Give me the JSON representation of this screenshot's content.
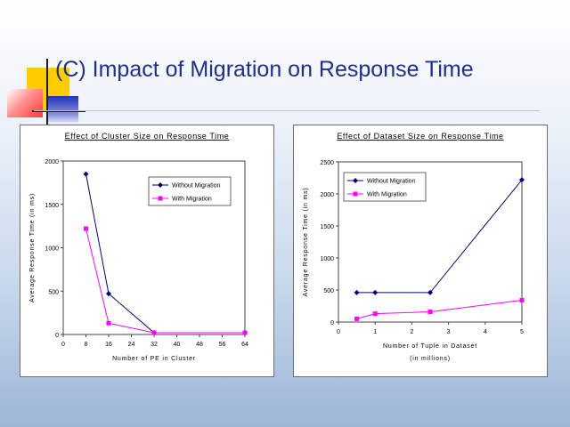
{
  "slide": {
    "title": "(C) Impact of Migration on Response Time"
  },
  "colors": {
    "title": "#1f2f8f",
    "square_yellow": "#ffcc00",
    "square_red": "#ff3b3b",
    "square_blue": "#2233bb",
    "series_without": "#000080",
    "series_with": "#ff00ff"
  },
  "chart_data": [
    {
      "type": "line",
      "title": "Effect of Cluster Size on Response Time",
      "xlabel": "Number of PE in Cluster",
      "xlabel2": "",
      "ylabel": "Average Response Time (in ms)",
      "xlim": [
        0,
        64
      ],
      "ylim": [
        0,
        2000
      ],
      "xticks": [
        0,
        8,
        16,
        24,
        32,
        40,
        48,
        56,
        64
      ],
      "yticks": [
        0,
        500,
        1000,
        1500,
        2000
      ],
      "grid": false,
      "legend": "top-right",
      "series": [
        {
          "name": "Without Migration",
          "marker": "diamond",
          "x": [
            8,
            16,
            32,
            64
          ],
          "y": [
            1850,
            470,
            20,
            20
          ]
        },
        {
          "name": "With Migration",
          "marker": "square",
          "x": [
            8,
            16,
            32,
            64
          ],
          "y": [
            1220,
            130,
            20,
            20
          ]
        }
      ]
    },
    {
      "type": "line",
      "title": "Effect of Dataset Size on Response Time",
      "xlabel": "Number of Tuple in Dataset",
      "xlabel2": "(in millions)",
      "ylabel": "Average Response Time (in ms)",
      "xlim": [
        0,
        5
      ],
      "ylim": [
        0,
        2500
      ],
      "xticks": [
        0,
        1,
        2,
        3,
        4,
        5
      ],
      "yticks": [
        0,
        500,
        1000,
        1500,
        2000,
        2500
      ],
      "grid": false,
      "legend": "top-left",
      "series": [
        {
          "name": "Without Migration",
          "marker": "diamond",
          "x": [
            0.5,
            1,
            2.5,
            5
          ],
          "y": [
            460,
            460,
            460,
            2220
          ]
        },
        {
          "name": "With Migration",
          "marker": "square",
          "x": [
            0.5,
            1,
            2.5,
            5
          ],
          "y": [
            50,
            130,
            160,
            340
          ]
        }
      ]
    }
  ]
}
